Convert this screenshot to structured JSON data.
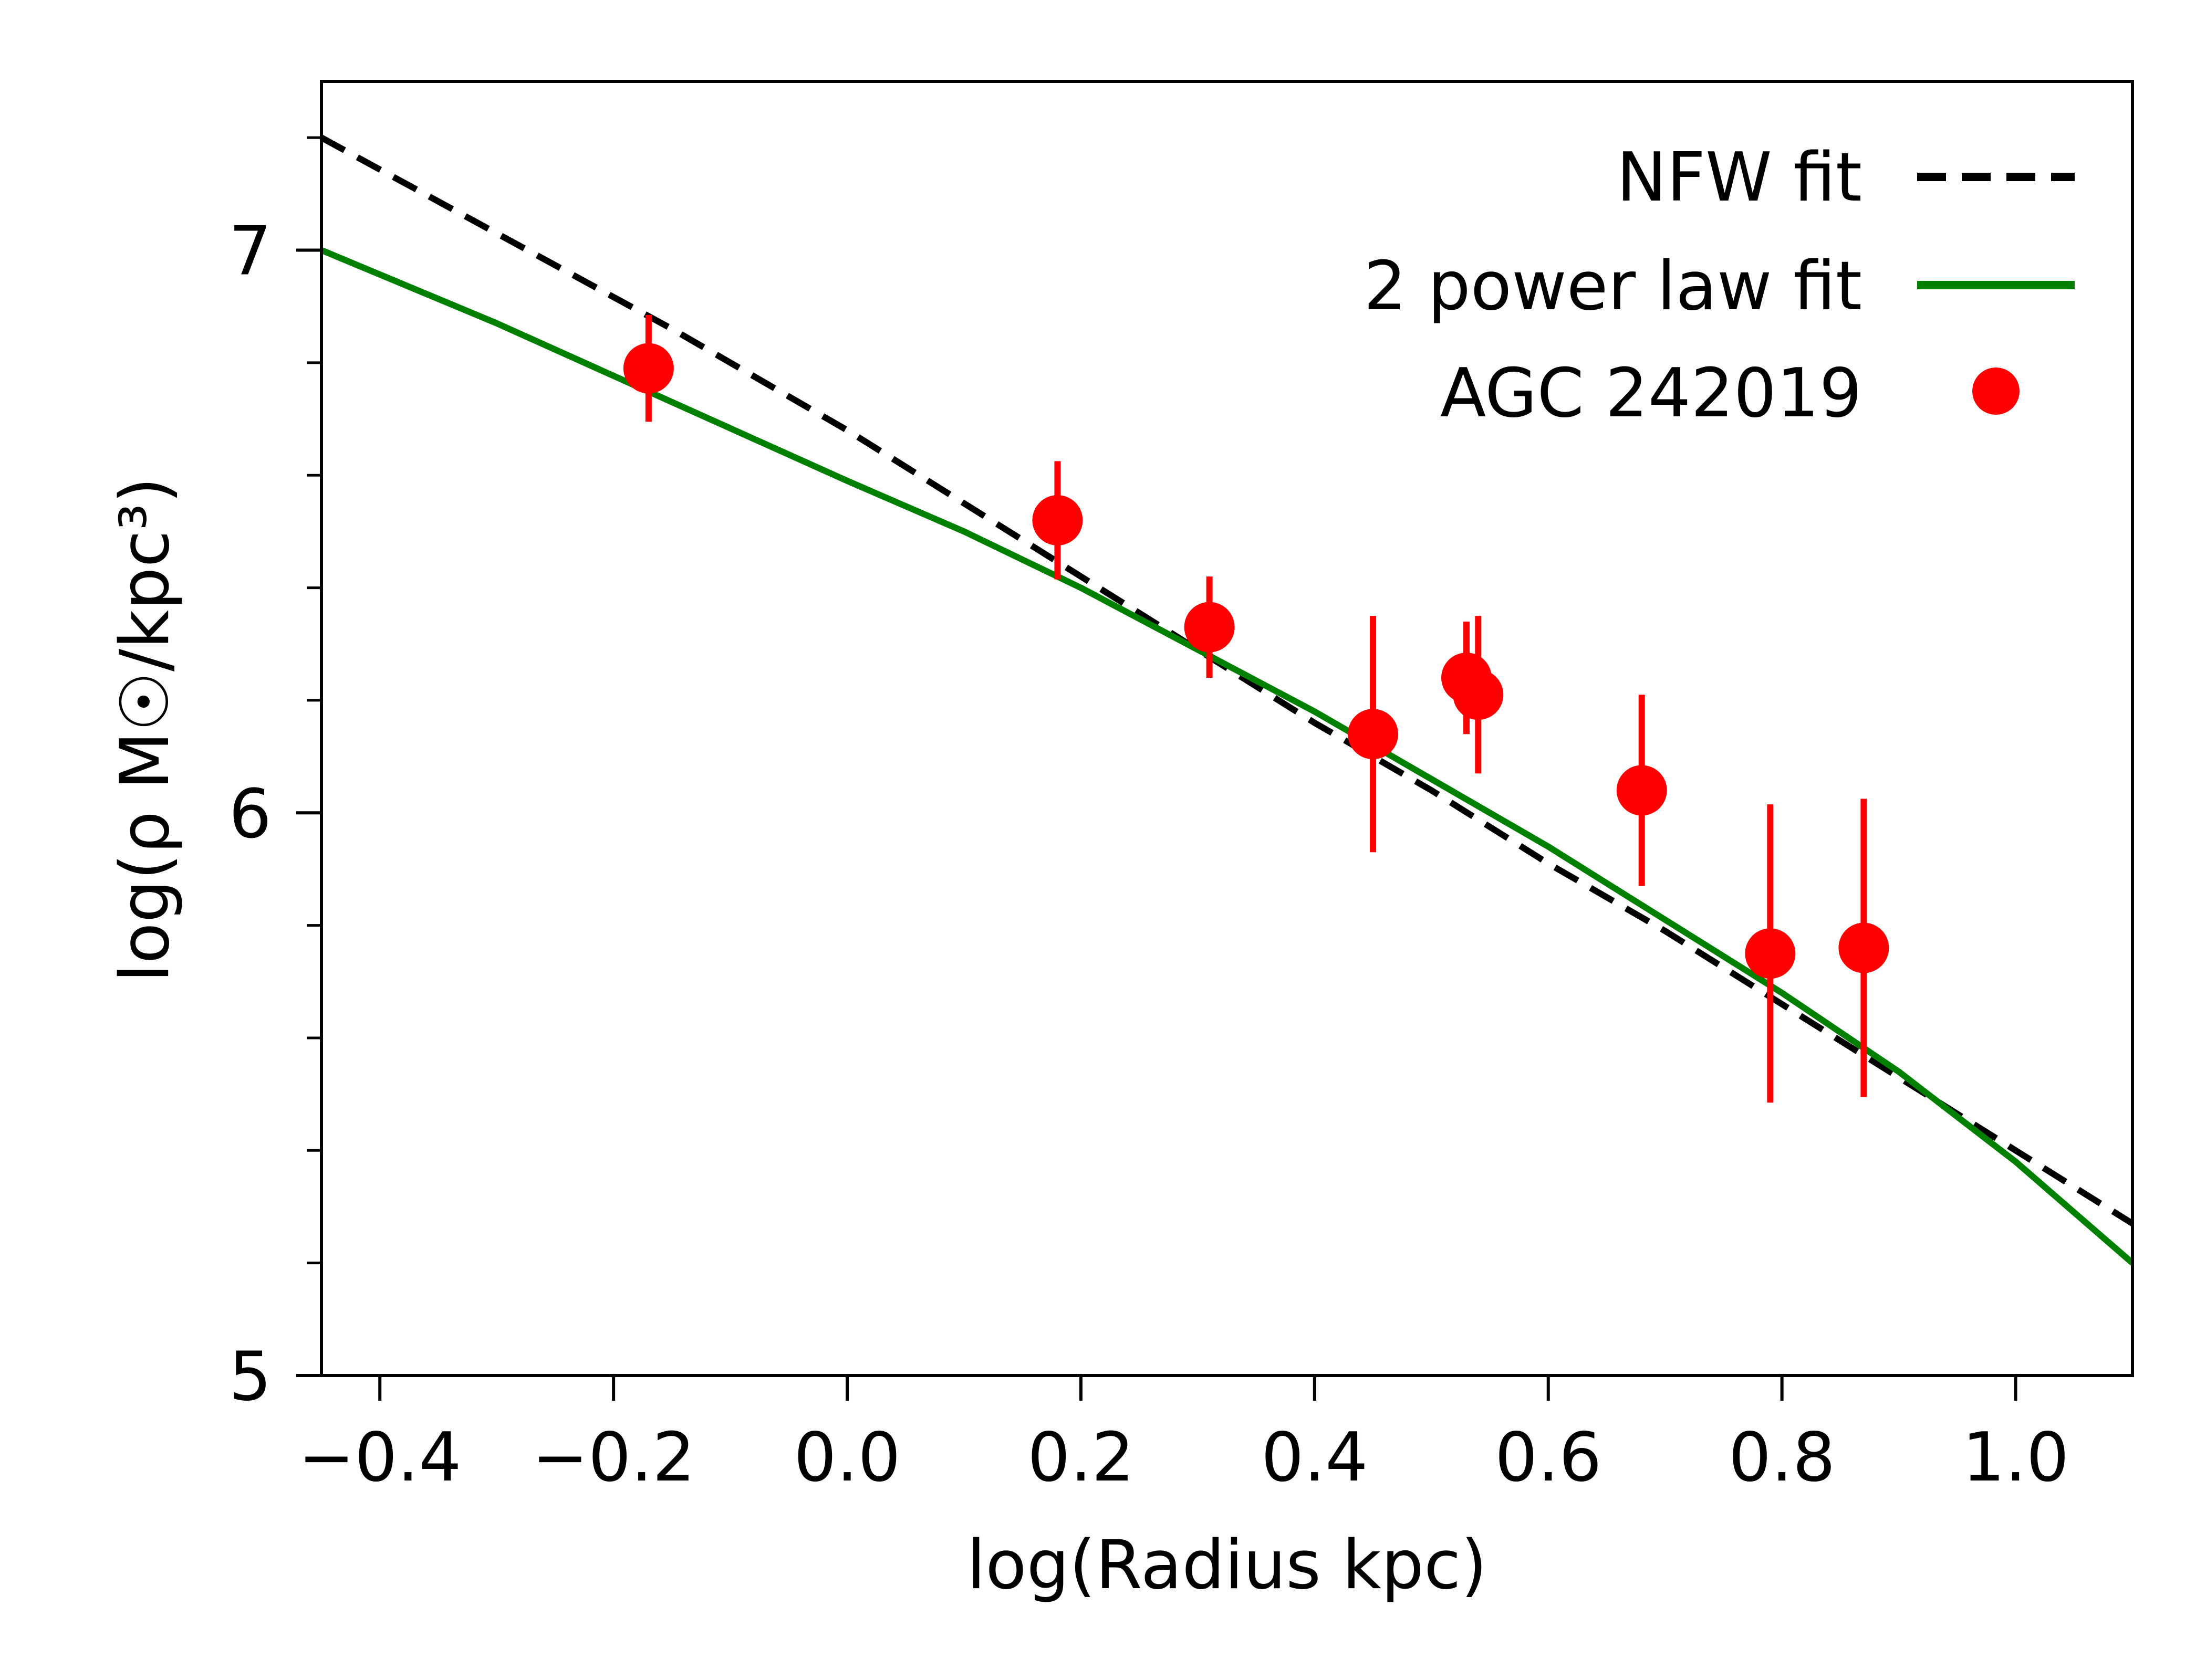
{
  "chart_data": {
    "type": "scatter",
    "xlabel": "log(Radius kpc)",
    "ylabel": "log(ρ M☉/kpc³)",
    "xlim": [
      -0.45,
      1.1
    ],
    "ylim": [
      5.0,
      7.3
    ],
    "x_ticks": [
      -0.4,
      -0.2,
      0.0,
      0.2,
      0.4,
      0.6,
      0.8,
      1.0
    ],
    "x_tick_labels": [
      "−0.4",
      "−0.2",
      "0.0",
      "0.2",
      "0.4",
      "0.6",
      "0.8",
      "1.0"
    ],
    "y_major_ticks": [
      5,
      6,
      7
    ],
    "y_tick_labels": [
      "5",
      "6",
      "7"
    ],
    "y_minor_ticks": [
      5.2,
      5.4,
      5.6,
      5.8,
      6.2,
      6.4,
      6.6,
      6.8,
      7.2
    ],
    "grid": false,
    "legend_position": "top-right",
    "series": [
      {
        "name": "NFW fit",
        "kind": "line",
        "style": "dashed",
        "color": "#000000",
        "x": [
          -0.45,
          -0.3,
          -0.15,
          0.0,
          0.1,
          0.2,
          0.3,
          0.4,
          0.5,
          0.6,
          0.7,
          0.8,
          0.9,
          1.0,
          1.1
        ],
        "y": [
          7.2,
          7.03,
          6.86,
          6.68,
          6.55,
          6.42,
          6.29,
          6.16,
          6.04,
          5.91,
          5.79,
          5.66,
          5.53,
          5.4,
          5.27
        ]
      },
      {
        "name": "2 power law fit",
        "kind": "line",
        "style": "solid",
        "color": "#008000",
        "x": [
          -0.45,
          -0.3,
          -0.15,
          0.0,
          0.1,
          0.2,
          0.3,
          0.4,
          0.5,
          0.6,
          0.7,
          0.8,
          0.9,
          1.0,
          1.1
        ],
        "y": [
          7.0,
          6.87,
          6.73,
          6.59,
          6.5,
          6.4,
          6.29,
          6.18,
          6.06,
          5.94,
          5.81,
          5.68,
          5.54,
          5.38,
          5.2
        ]
      },
      {
        "name": "AGC 242019",
        "kind": "points",
        "color": "#ff0000",
        "x": [
          -0.17,
          0.18,
          0.31,
          0.45,
          0.53,
          0.54,
          0.68,
          0.79,
          0.87
        ],
        "y": [
          6.79,
          6.52,
          6.33,
          6.14,
          6.24,
          6.21,
          6.04,
          5.75,
          5.76
        ],
        "yerr": [
          0.095,
          0.105,
          0.09,
          0.21,
          0.1,
          0.14,
          0.17,
          0.265,
          0.265
        ]
      }
    ]
  }
}
